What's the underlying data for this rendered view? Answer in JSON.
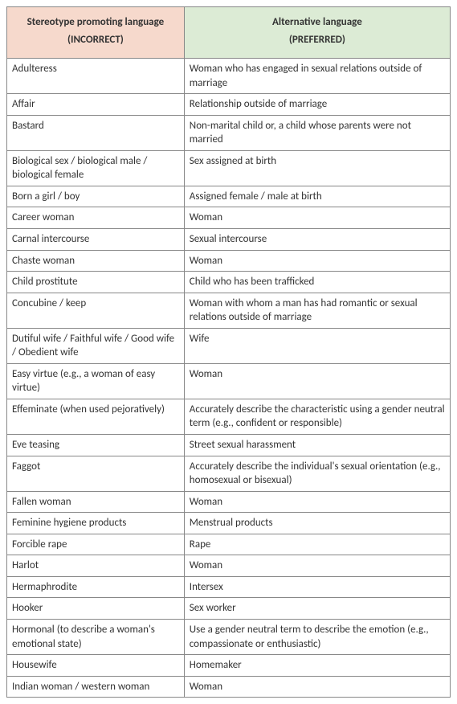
{
  "header": {
    "left_title": "Stereotype promoting language",
    "left_sub": "(INCORRECT)",
    "right_title": "Alternative language",
    "right_sub": "(PREFERRED)",
    "left_bg": "#f6d9cc",
    "right_bg": "#dcebd5",
    "border_color": "#888888",
    "text_color": "#333333",
    "header_fontsize": 14,
    "cell_fontsize": 13
  },
  "rows": [
    {
      "l": "Adulteress",
      "r": "Woman who has engaged in sexual relations outside of marriage"
    },
    {
      "l": "Affair",
      "r": "Relationship outside of marriage"
    },
    {
      "l": "Bastard",
      "r": "Non-marital child or, a child whose parents were not married"
    },
    {
      "l": "Biological sex / biological male / biological female",
      "r": "Sex assigned at birth"
    },
    {
      "l": "Born a girl / boy",
      "r": "Assigned female / male at birth"
    },
    {
      "l": "Career woman",
      "r": "Woman"
    },
    {
      "l": "Carnal intercourse",
      "r": "Sexual intercourse"
    },
    {
      "l": "Chaste woman",
      "r": "Woman"
    },
    {
      "l": "Child prostitute",
      "r": "Child who has been trafficked"
    },
    {
      "l": "Concubine / keep",
      "r": "Woman with whom a man has had romantic or sexual relations outside of marriage"
    },
    {
      "l": "Dutiful wife / Faithful wife / Good wife / Obedient wife",
      "r": "Wife"
    },
    {
      "l": "Easy virtue (e.g., a woman of easy virtue)",
      "r": "Woman"
    },
    {
      "l": "Effeminate (when used pejoratively)",
      "r": "Accurately describe the characteristic using a gender neutral term (e.g., confident or responsible)"
    },
    {
      "l": "Eve teasing",
      "r": "Street sexual harassment"
    },
    {
      "l": "Faggot",
      "r": "Accurately describe the individual's sexual orientation (e.g., homosexual or bisexual)"
    },
    {
      "l": "Fallen woman",
      "r": "Woman"
    },
    {
      "l": "Feminine hygiene products",
      "r": "Menstrual products"
    },
    {
      "l": "Forcible rape",
      "r": "Rape"
    },
    {
      "l": "Harlot",
      "r": "Woman"
    },
    {
      "l": "Hermaphrodite",
      "r": "Intersex"
    },
    {
      "l": "Hooker",
      "r": "Sex worker"
    },
    {
      "l": "Hormonal (to describe a woman's emotional state)",
      "r": "Use a gender neutral term to describe the emotion (e.g., compassionate or enthusiastic)"
    },
    {
      "l": "Housewife",
      "r": "Homemaker"
    },
    {
      "l": "Indian woman / western woman",
      "r": "Woman"
    }
  ]
}
